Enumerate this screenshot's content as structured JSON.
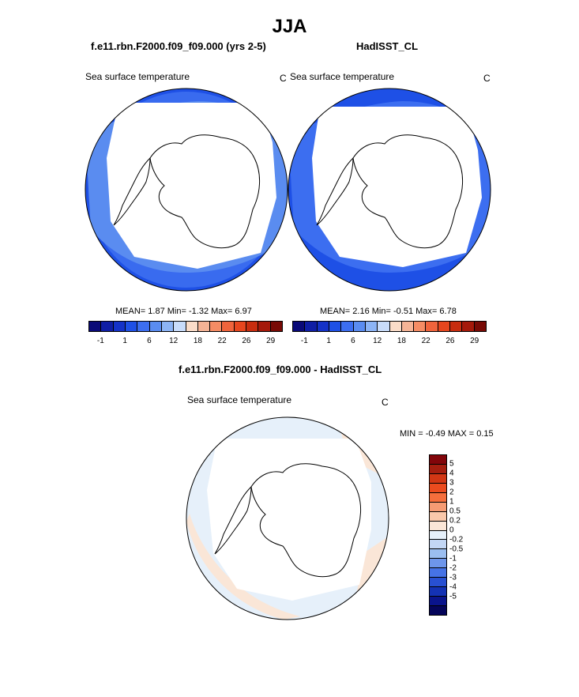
{
  "title": "JJA",
  "panels": [
    {
      "title": "f.e11.rbn.F2000.f09_f09.000 (yrs 2-5)",
      "variable": "Sea surface temperature",
      "units": "C",
      "mean": "1.87",
      "min": "-1.32",
      "max": "6.97"
    },
    {
      "title": "HadISST_CL",
      "variable": "Sea surface temperature",
      "units": "C",
      "mean": "2.16",
      "min": "-0.51",
      "max": "6.78"
    },
    {
      "title": "f.e11.rbn.F2000.f09_f09.000 - HadISST_CL",
      "variable": "Sea surface temperature",
      "units": "C",
      "min": "-0.49",
      "max": "0.15"
    }
  ],
  "stat_labels": {
    "mean": "MEAN=",
    "min": "Min=",
    "max": "Max=",
    "diff_min": "MIN =",
    "diff_max": "MAX ="
  },
  "colorbar_top": {
    "colors": [
      "#0a0a78",
      "#0f1ea5",
      "#1432c8",
      "#1e50e6",
      "#3c6ef0",
      "#5a8cf0",
      "#8cb4f5",
      "#c8dcfa",
      "#fadcc8",
      "#f5b496",
      "#f58c64",
      "#f0643c",
      "#e6461e",
      "#c82d0f",
      "#a5190a",
      "#780a05"
    ],
    "labels": [
      "-1",
      "1",
      "6",
      "12",
      "18",
      "22",
      "26",
      "29"
    ]
  },
  "colorbar_diff": {
    "colors": [
      "#82050a",
      "#a51e0f",
      "#d23714",
      "#eb4b1e",
      "#f56e3c",
      "#f59b73",
      "#fac8aa",
      "#fae6d7",
      "#e6f0fa",
      "#c3d7f5",
      "#9bbef0",
      "#6e96eb",
      "#4673e6",
      "#2850d2",
      "#1432b4",
      "#0a148c",
      "#05055a"
    ],
    "labels": [
      "5",
      "4",
      "3",
      "2",
      "1",
      "0.5",
      "0.2",
      "0",
      "-0.2",
      "-0.5",
      "-1",
      "-2",
      "-3",
      "-4",
      "-5"
    ]
  }
}
